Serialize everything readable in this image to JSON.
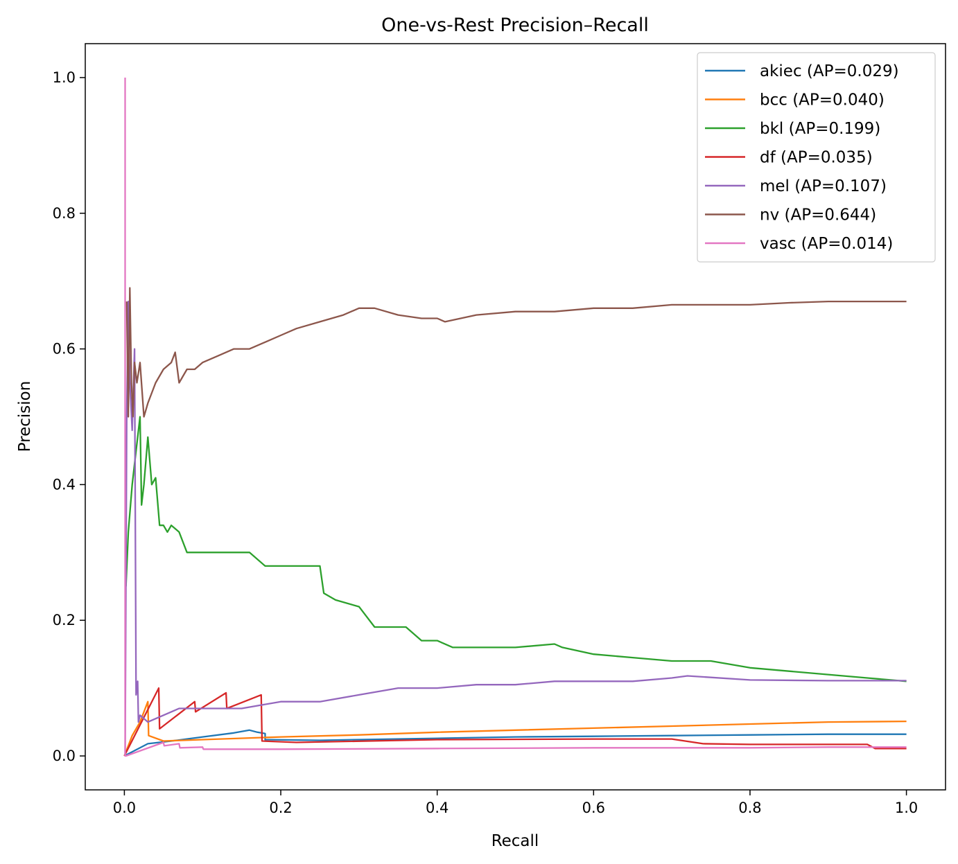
{
  "chart_data": {
    "type": "line",
    "title": "One-vs-Rest Precision–Recall",
    "xlabel": "Recall",
    "ylabel": "Precision",
    "xlim": [
      -0.05,
      1.05
    ],
    "ylim": [
      -0.05,
      1.05
    ],
    "xticks": [
      0.0,
      0.2,
      0.4,
      0.6,
      0.8,
      1.0
    ],
    "xtick_labels": [
      "0.0",
      "0.2",
      "0.4",
      "0.6",
      "0.8",
      "1.0"
    ],
    "yticks": [
      0.0,
      0.2,
      0.4,
      0.6,
      0.8,
      1.0
    ],
    "ytick_labels": [
      "0.0",
      "0.2",
      "0.4",
      "0.6",
      "0.8",
      "1.0"
    ],
    "grid": false,
    "legend_position": "top-right",
    "series": [
      {
        "name": "akiec (AP=0.029)",
        "color": "#1f77b4",
        "x": [
          0.0,
          0.03,
          0.06,
          0.1,
          0.14,
          0.16,
          0.17,
          0.18,
          0.18,
          0.25,
          0.3,
          0.4,
          0.5,
          0.6,
          0.7,
          0.8,
          0.9,
          1.0
        ],
        "y": [
          0.0,
          0.018,
          0.022,
          0.028,
          0.034,
          0.038,
          0.035,
          0.033,
          0.024,
          0.023,
          0.024,
          0.026,
          0.028,
          0.029,
          0.03,
          0.031,
          0.032,
          0.032
        ]
      },
      {
        "name": "bcc (AP=0.040)",
        "color": "#ff7f0e",
        "x": [
          0.0,
          0.01,
          0.02,
          0.03,
          0.031,
          0.05,
          0.1,
          0.2,
          0.3,
          0.4,
          0.5,
          0.6,
          0.7,
          0.8,
          0.9,
          1.0
        ],
        "y": [
          0.0,
          0.03,
          0.05,
          0.08,
          0.03,
          0.022,
          0.024,
          0.028,
          0.031,
          0.035,
          0.038,
          0.041,
          0.044,
          0.047,
          0.05,
          0.051
        ]
      },
      {
        "name": "bkl (AP=0.199)",
        "color": "#2ca02c",
        "x": [
          0.002,
          0.005,
          0.01,
          0.015,
          0.02,
          0.022,
          0.025,
          0.03,
          0.035,
          0.04,
          0.045,
          0.05,
          0.055,
          0.06,
          0.07,
          0.08,
          0.09,
          0.1,
          0.12,
          0.14,
          0.15,
          0.16,
          0.18,
          0.2,
          0.22,
          0.25,
          0.255,
          0.27,
          0.3,
          0.32,
          0.33,
          0.36,
          0.38,
          0.4,
          0.42,
          0.5,
          0.55,
          0.56,
          0.6,
          0.65,
          0.7,
          0.75,
          0.8,
          0.9,
          0.95,
          1.0
        ],
        "y": [
          0.25,
          0.33,
          0.4,
          0.45,
          0.5,
          0.37,
          0.4,
          0.47,
          0.4,
          0.41,
          0.34,
          0.34,
          0.33,
          0.34,
          0.33,
          0.3,
          0.3,
          0.3,
          0.3,
          0.3,
          0.3,
          0.3,
          0.28,
          0.28,
          0.28,
          0.28,
          0.24,
          0.23,
          0.22,
          0.19,
          0.19,
          0.19,
          0.17,
          0.17,
          0.16,
          0.16,
          0.165,
          0.16,
          0.15,
          0.145,
          0.14,
          0.14,
          0.13,
          0.12,
          0.115,
          0.11
        ]
      },
      {
        "name": "df (AP=0.035)",
        "color": "#d62728",
        "x": [
          0.0,
          0.044,
          0.045,
          0.09,
          0.091,
          0.13,
          0.131,
          0.175,
          0.176,
          0.22,
          0.4,
          0.6,
          0.7,
          0.74,
          0.8,
          0.95,
          0.96,
          1.0
        ],
        "y": [
          0.0,
          0.1,
          0.04,
          0.08,
          0.065,
          0.093,
          0.07,
          0.09,
          0.022,
          0.02,
          0.024,
          0.025,
          0.025,
          0.018,
          0.017,
          0.017,
          0.011,
          0.011
        ]
      },
      {
        "name": "mel (AP=0.107)",
        "color": "#9467bd",
        "x": [
          0.001,
          0.003,
          0.005,
          0.007,
          0.01,
          0.013,
          0.015,
          0.017,
          0.018,
          0.02,
          0.03,
          0.05,
          0.07,
          0.09,
          0.1,
          0.15,
          0.2,
          0.25,
          0.3,
          0.35,
          0.4,
          0.45,
          0.5,
          0.55,
          0.6,
          0.65,
          0.7,
          0.72,
          0.8,
          0.9,
          1.0
        ],
        "y": [
          0.0,
          0.5,
          0.67,
          0.55,
          0.48,
          0.6,
          0.09,
          0.11,
          0.05,
          0.06,
          0.05,
          0.06,
          0.07,
          0.07,
          0.07,
          0.07,
          0.08,
          0.08,
          0.09,
          0.1,
          0.1,
          0.105,
          0.105,
          0.11,
          0.11,
          0.11,
          0.115,
          0.118,
          0.112,
          0.111,
          0.111
        ]
      },
      {
        "name": "nv (AP=0.644)",
        "color": "#8c564b",
        "x": [
          0.003,
          0.005,
          0.007,
          0.009,
          0.011,
          0.013,
          0.016,
          0.02,
          0.025,
          0.03,
          0.04,
          0.05,
          0.06,
          0.065,
          0.07,
          0.08,
          0.09,
          0.1,
          0.12,
          0.14,
          0.16,
          0.18,
          0.2,
          0.22,
          0.25,
          0.28,
          0.3,
          0.32,
          0.35,
          0.38,
          0.4,
          0.41,
          0.45,
          0.5,
          0.55,
          0.6,
          0.65,
          0.7,
          0.75,
          0.8,
          0.85,
          0.9,
          0.95,
          1.0
        ],
        "y": [
          0.67,
          0.5,
          0.69,
          0.55,
          0.5,
          0.58,
          0.55,
          0.58,
          0.5,
          0.52,
          0.55,
          0.57,
          0.58,
          0.595,
          0.55,
          0.57,
          0.57,
          0.58,
          0.59,
          0.6,
          0.6,
          0.61,
          0.62,
          0.63,
          0.64,
          0.65,
          0.66,
          0.66,
          0.65,
          0.645,
          0.645,
          0.64,
          0.65,
          0.655,
          0.655,
          0.66,
          0.66,
          0.665,
          0.665,
          0.665,
          0.668,
          0.67,
          0.67,
          0.67
        ]
      },
      {
        "name": "vasc (AP=0.014)",
        "color": "#e377c2",
        "x": [
          0.001,
          0.001,
          0.002,
          0.05,
          0.051,
          0.07,
          0.071,
          0.1,
          0.101,
          0.2,
          0.4,
          0.6,
          0.8,
          0.9,
          1.0
        ],
        "y": [
          1.0,
          0.0,
          0.0,
          0.02,
          0.015,
          0.018,
          0.012,
          0.013,
          0.01,
          0.01,
          0.011,
          0.012,
          0.012,
          0.013,
          0.013
        ]
      }
    ]
  }
}
